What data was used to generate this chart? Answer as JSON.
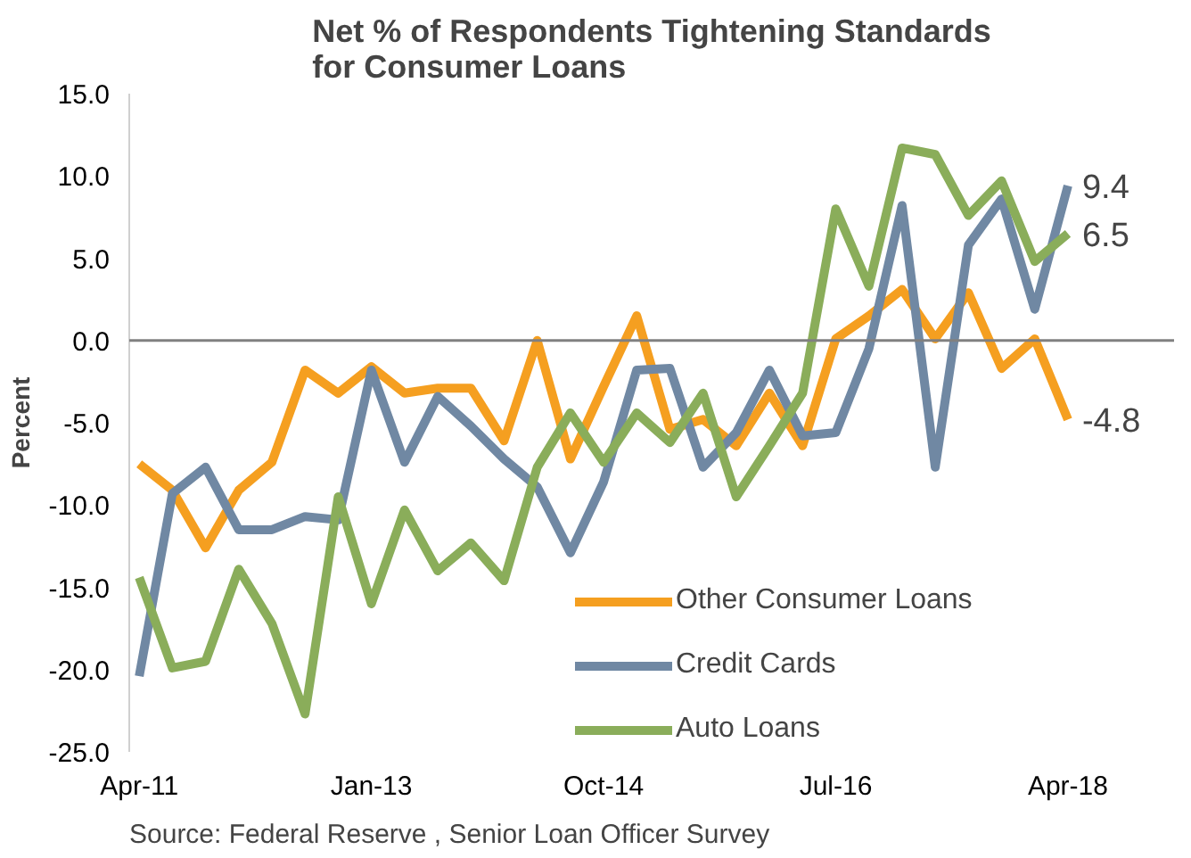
{
  "chart_data": {
    "type": "line",
    "title": "Net % of Respondents Tightening Standards\nfor Consumer Loans",
    "ylabel": "Percent",
    "categories": [
      "Apr-11",
      null,
      null,
      null,
      null,
      null,
      null,
      "Jan-13",
      null,
      null,
      null,
      null,
      null,
      null,
      "Oct-14",
      null,
      null,
      null,
      null,
      null,
      null,
      "Jul-16",
      null,
      null,
      null,
      null,
      null,
      null,
      "Apr-18"
    ],
    "series": [
      {
        "name": "Other Consumer Loans",
        "color": "#f59f20",
        "values": [
          -7.5,
          -9.1,
          -12.6,
          -9.1,
          -7.4,
          -1.8,
          -3.2,
          -1.6,
          -3.2,
          -2.9,
          -2.9,
          -6.1,
          0.0,
          -7.2,
          -2.8,
          1.5,
          -5.4,
          -4.8,
          -6.4,
          -3.2,
          -6.4,
          0.1,
          1.5,
          3.1,
          0.1,
          2.9,
          -1.7,
          0.1,
          -4.8
        ]
      },
      {
        "name": "Credit Cards",
        "color": "#7088a3",
        "values": [
          -20.4,
          -9.3,
          -7.7,
          -11.5,
          -11.5,
          -10.7,
          -10.9,
          -1.8,
          -7.4,
          -3.4,
          -5.2,
          -7.2,
          -8.9,
          -12.9,
          -8.6,
          -1.8,
          -1.7,
          -7.7,
          -5.6,
          -1.8,
          -5.8,
          -5.6,
          -0.5,
          8.2,
          -7.7,
          5.8,
          8.6,
          1.9,
          9.4
        ]
      },
      {
        "name": "Auto Loans",
        "color": "#8aad5a",
        "values": [
          -14.4,
          -19.9,
          -19.5,
          -13.9,
          -17.2,
          -22.7,
          -9.5,
          -16.0,
          -10.3,
          -14.0,
          -12.3,
          -14.6,
          -7.7,
          -4.4,
          -7.4,
          -4.4,
          -6.2,
          -3.2,
          -9.5,
          -6.4,
          -3.2,
          8.0,
          3.3,
          11.7,
          11.3,
          7.6,
          9.7,
          4.8,
          6.5
        ]
      }
    ],
    "ylim": [
      -25,
      15
    ],
    "yticks": [
      {
        "value": -25,
        "label": "-25.0"
      },
      {
        "value": -20,
        "label": "-20.0"
      },
      {
        "value": -15,
        "label": "-15.0"
      },
      {
        "value": -10,
        "label": "-10.0"
      },
      {
        "value": -5,
        "label": "-5.0"
      },
      {
        "value": 0,
        "label": "0.0"
      },
      {
        "value": 5,
        "label": "5.0"
      },
      {
        "value": 10,
        "label": "10.0"
      },
      {
        "value": 15,
        "label": "15.0"
      }
    ],
    "ref_lines": [
      {
        "axis": "y",
        "value": 0,
        "color": "#808080"
      }
    ],
    "annotations": [
      {
        "text": "9.4",
        "x": "Apr-18",
        "y": 9.4
      },
      {
        "text": "6.5",
        "x": "Apr-18",
        "y": 6.5
      },
      {
        "text": "-4.8",
        "x": "Apr-18",
        "y": -4.8
      },
      "Source: Federal Reserve , Senior Loan Officer Survey"
    ],
    "legend": "bottom right",
    "grid": false,
    "line_style": "solid"
  }
}
